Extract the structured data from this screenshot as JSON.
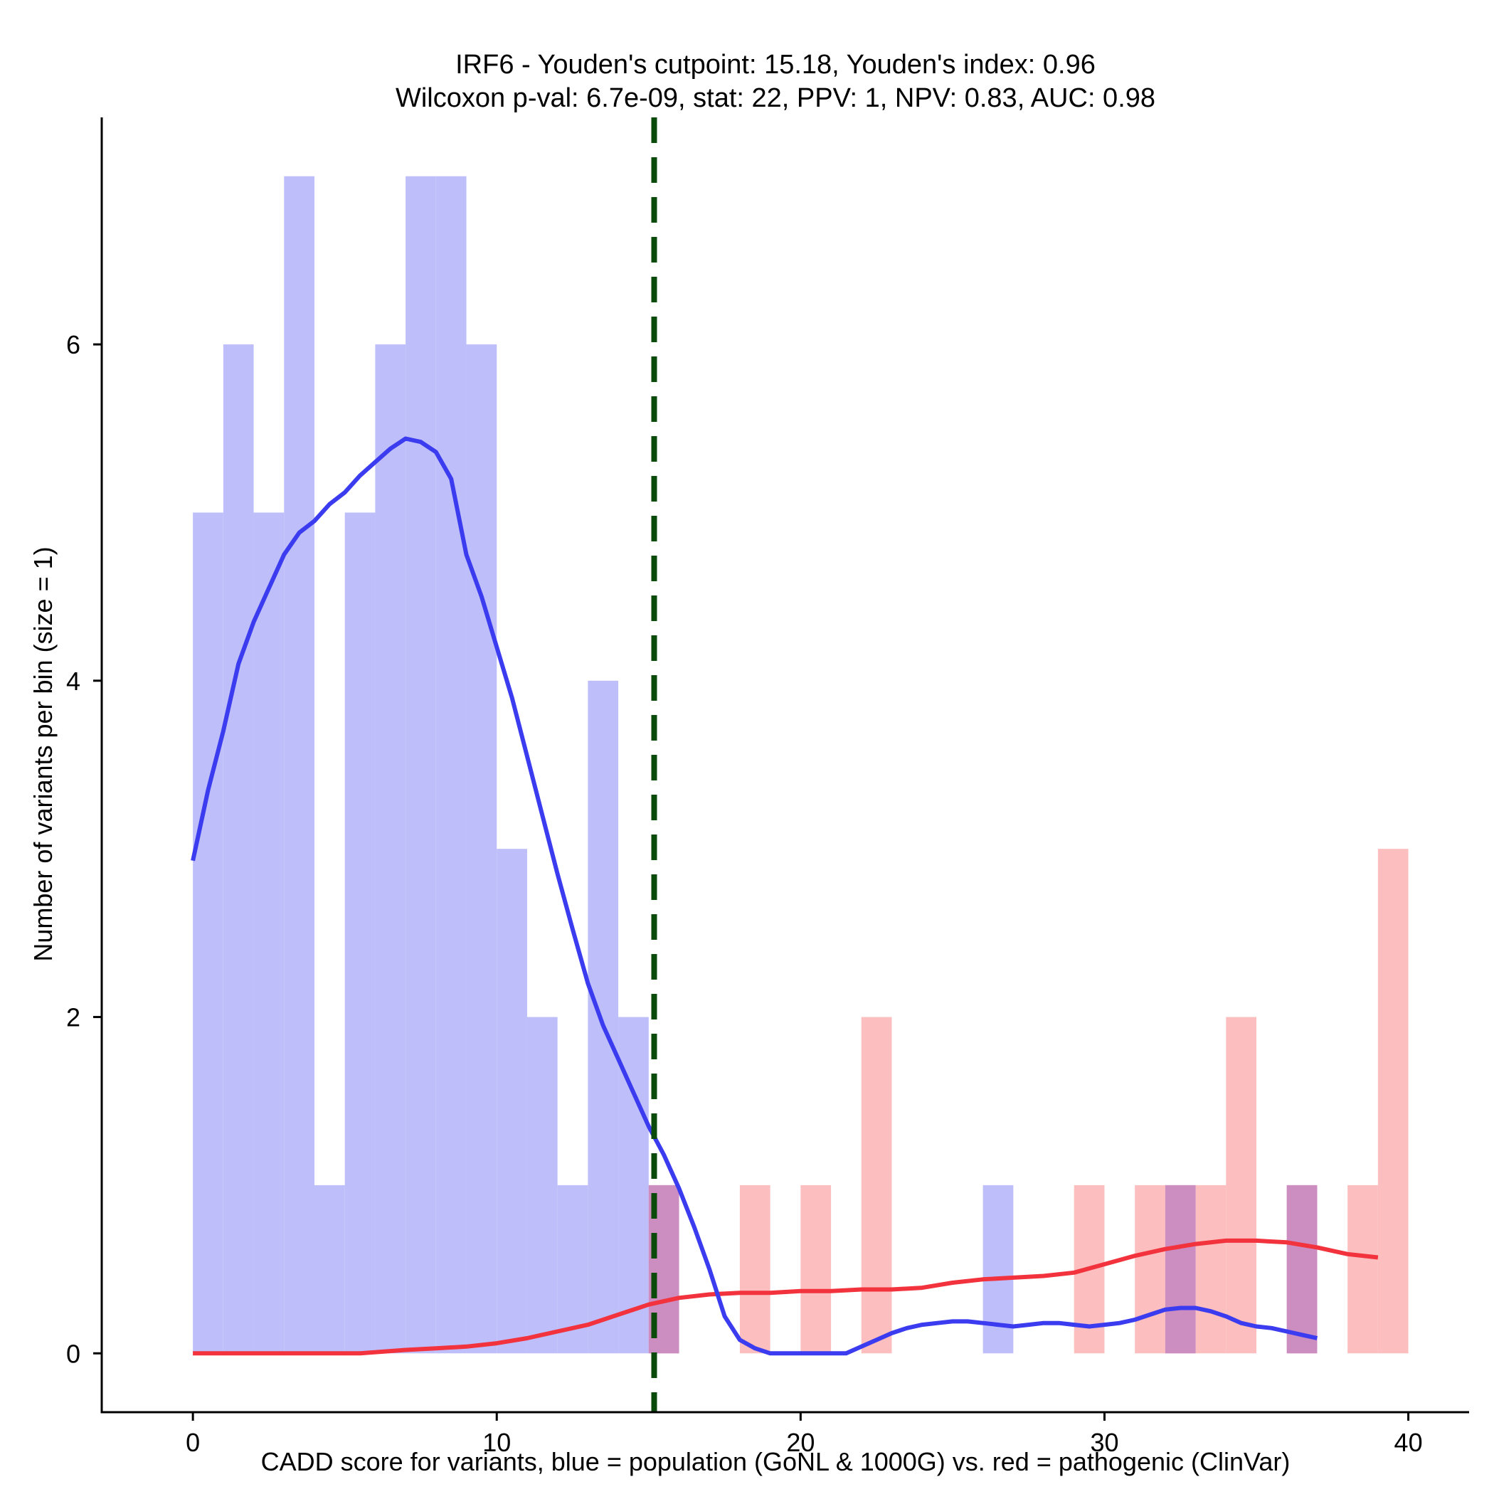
{
  "chart_data": {
    "type": "histogram",
    "title_line1": "IRF6 - Youden's cutpoint: 15.18, Youden's index: 0.96",
    "title_line2": "Wilcoxon p-val: 6.7e-09, stat: 22, PPV: 1, NPV: 0.83, AUC: 0.98",
    "xlabel": "CADD score for variants, blue = population (GoNL & 1000G) vs. red = pathogenic (ClinVar)",
    "ylabel": "Number of variants per bin (size = 1)",
    "xlim": [
      -3,
      42
    ],
    "ylim": [
      -0.35,
      7.35
    ],
    "xticks": [
      0,
      10,
      20,
      30,
      40
    ],
    "yticks": [
      0,
      2,
      4,
      6
    ],
    "bin_size": 1,
    "cutpoint": 15.18,
    "colors": {
      "population_bar": "#bebefa",
      "pathogenic_bar": "#fcbebe",
      "overlap_bar": "#cc8dc1",
      "population_density": "#3b3bf0",
      "pathogenic_density": "#f2323c",
      "cutpoint_line": "#0a4a0a",
      "axis": "#000000"
    },
    "series": [
      {
        "name": "population (GoNL & 1000G)",
        "bins": [
          {
            "x": 0,
            "count": 5
          },
          {
            "x": 1,
            "count": 6
          },
          {
            "x": 2,
            "count": 5
          },
          {
            "x": 3,
            "count": 7
          },
          {
            "x": 4,
            "count": 1
          },
          {
            "x": 5,
            "count": 5
          },
          {
            "x": 6,
            "count": 6
          },
          {
            "x": 7,
            "count": 7
          },
          {
            "x": 8,
            "count": 7
          },
          {
            "x": 9,
            "count": 6
          },
          {
            "x": 10,
            "count": 3
          },
          {
            "x": 11,
            "count": 2
          },
          {
            "x": 12,
            "count": 1
          },
          {
            "x": 13,
            "count": 4
          },
          {
            "x": 14,
            "count": 2
          },
          {
            "x": 15,
            "count": 1
          },
          {
            "x": 26,
            "count": 1
          },
          {
            "x": 32,
            "count": 1
          },
          {
            "x": 36,
            "count": 1
          }
        ],
        "density_scaled": [
          [
            0,
            2.93
          ],
          [
            0.5,
            3.35
          ],
          [
            1,
            3.7
          ],
          [
            1.5,
            4.1
          ],
          [
            2,
            4.35
          ],
          [
            2.5,
            4.55
          ],
          [
            3,
            4.75
          ],
          [
            3.5,
            4.88
          ],
          [
            4,
            4.95
          ],
          [
            4.5,
            5.05
          ],
          [
            5,
            5.12
          ],
          [
            5.5,
            5.22
          ],
          [
            6,
            5.3
          ],
          [
            6.5,
            5.38
          ],
          [
            7,
            5.44
          ],
          [
            7.5,
            5.42
          ],
          [
            8,
            5.36
          ],
          [
            8.5,
            5.2
          ],
          [
            9,
            4.75
          ],
          [
            9.5,
            4.5
          ],
          [
            10,
            4.2
          ],
          [
            10.5,
            3.9
          ],
          [
            11,
            3.55
          ],
          [
            11.5,
            3.2
          ],
          [
            12,
            2.85
          ],
          [
            12.5,
            2.52
          ],
          [
            13,
            2.2
          ],
          [
            13.5,
            1.95
          ],
          [
            14,
            1.75
          ],
          [
            14.5,
            1.55
          ],
          [
            15,
            1.35
          ],
          [
            15.5,
            1.18
          ],
          [
            16,
            0.98
          ],
          [
            16.5,
            0.75
          ],
          [
            17,
            0.5
          ],
          [
            17.5,
            0.22
          ],
          [
            18,
            0.08
          ],
          [
            18.5,
            0.03
          ],
          [
            19,
            0
          ],
          [
            19.5,
            0
          ],
          [
            20,
            0
          ],
          [
            20.5,
            0
          ],
          [
            21,
            0
          ],
          [
            21.5,
            0
          ],
          [
            22,
            0.04
          ],
          [
            22.5,
            0.08
          ],
          [
            23,
            0.12
          ],
          [
            23.5,
            0.15
          ],
          [
            24,
            0.17
          ],
          [
            24.5,
            0.18
          ],
          [
            25,
            0.19
          ],
          [
            25.5,
            0.19
          ],
          [
            26,
            0.18
          ],
          [
            26.5,
            0.17
          ],
          [
            27,
            0.16
          ],
          [
            27.5,
            0.17
          ],
          [
            28,
            0.18
          ],
          [
            28.5,
            0.18
          ],
          [
            29,
            0.17
          ],
          [
            29.5,
            0.16
          ],
          [
            30,
            0.17
          ],
          [
            30.5,
            0.18
          ],
          [
            31,
            0.2
          ],
          [
            31.5,
            0.23
          ],
          [
            32,
            0.26
          ],
          [
            32.5,
            0.27
          ],
          [
            33,
            0.27
          ],
          [
            33.5,
            0.25
          ],
          [
            34,
            0.22
          ],
          [
            34.5,
            0.18
          ],
          [
            35,
            0.16
          ],
          [
            35.5,
            0.15
          ],
          [
            36,
            0.13
          ],
          [
            36.5,
            0.11
          ],
          [
            37,
            0.09
          ]
        ]
      },
      {
        "name": "pathogenic (ClinVar)",
        "bins": [
          {
            "x": 15,
            "count": 1
          },
          {
            "x": 18,
            "count": 1
          },
          {
            "x": 20,
            "count": 1
          },
          {
            "x": 22,
            "count": 2
          },
          {
            "x": 29,
            "count": 1
          },
          {
            "x": 31,
            "count": 1
          },
          {
            "x": 32,
            "count": 1
          },
          {
            "x": 33,
            "count": 1
          },
          {
            "x": 34,
            "count": 2
          },
          {
            "x": 36,
            "count": 1
          },
          {
            "x": 38,
            "count": 1
          },
          {
            "x": 39,
            "count": 3
          }
        ],
        "density_scaled": [
          [
            0,
            0
          ],
          [
            2,
            0
          ],
          [
            4,
            0
          ],
          [
            5.5,
            0
          ],
          [
            7,
            0.02
          ],
          [
            8,
            0.03
          ],
          [
            9,
            0.04
          ],
          [
            10,
            0.06
          ],
          [
            11,
            0.09
          ],
          [
            12,
            0.13
          ],
          [
            13,
            0.17
          ],
          [
            14,
            0.23
          ],
          [
            15,
            0.29
          ],
          [
            16,
            0.33
          ],
          [
            17,
            0.35
          ],
          [
            18,
            0.36
          ],
          [
            19,
            0.36
          ],
          [
            20,
            0.37
          ],
          [
            21,
            0.37
          ],
          [
            22,
            0.38
          ],
          [
            23,
            0.38
          ],
          [
            24,
            0.39
          ],
          [
            25,
            0.42
          ],
          [
            26,
            0.44
          ],
          [
            27,
            0.45
          ],
          [
            28,
            0.46
          ],
          [
            29,
            0.48
          ],
          [
            30,
            0.53
          ],
          [
            31,
            0.58
          ],
          [
            32,
            0.62
          ],
          [
            33,
            0.65
          ],
          [
            34,
            0.67
          ],
          [
            35,
            0.67
          ],
          [
            36,
            0.66
          ],
          [
            37,
            0.63
          ],
          [
            38,
            0.59
          ],
          [
            39,
            0.57
          ]
        ]
      }
    ]
  }
}
